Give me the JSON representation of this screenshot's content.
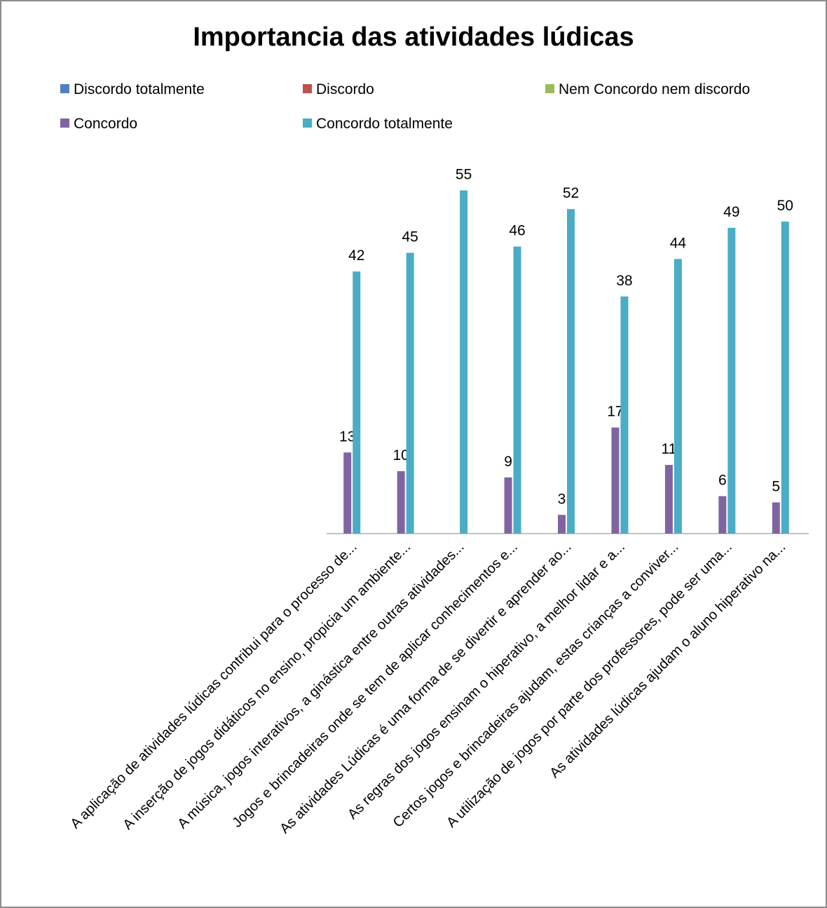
{
  "chart_data": {
    "type": "bar",
    "title": "Importancia das atividades lúdicas",
    "legend_placement": "top",
    "categories": [
      "A aplicação de atividades lúdicas contribui para o processo de...",
      "A inserção de jogos didáticos no ensino, propicia um ambiente...",
      "A música, jogos interativos, a ginástica entre outras atividades...",
      "Jogos e brincadeiras onde se tem de aplicar conhecimentos e...",
      "As atividades Lúdicas é uma forma de se divertir e aprender ao...",
      "As regras dos jogos ensinam o hiperativo, a melhor lidar e a...",
      "Certos jogos e brincadeiras ajudam, estas crianças a conviver...",
      "A utilização de jogos por parte dos professores,  pode ser uma...",
      "As atividades lúdicas ajudam o aluno hiperativo na..."
    ],
    "series": [
      {
        "name": "Discordo totalmente",
        "color": "#4f81bd",
        "values": [
          0,
          0,
          0,
          0,
          0,
          0,
          0,
          0,
          0
        ]
      },
      {
        "name": "Discordo",
        "color": "#c0504d",
        "values": [
          0,
          0,
          0,
          0,
          0,
          0,
          0,
          0,
          0
        ]
      },
      {
        "name": "Nem Concordo nem discordo",
        "color": "#9bbb59",
        "values": [
          0,
          0,
          0,
          0,
          0,
          0,
          0,
          0,
          0
        ]
      },
      {
        "name": "Concordo",
        "color": "#8064a2",
        "values": [
          13,
          10,
          0,
          9,
          3,
          17,
          11,
          6,
          5
        ]
      },
      {
        "name": "Concordo totalmente",
        "color": "#4bacc6",
        "values": [
          42,
          45,
          55,
          46,
          52,
          38,
          44,
          49,
          50
        ]
      }
    ],
    "data_labels": [
      [
        "",
        "",
        "",
        "",
        "",
        "",
        "",
        "",
        ""
      ],
      [
        "",
        "",
        "",
        "",
        "",
        "",
        "",
        "",
        ""
      ],
      [
        "",
        "",
        "",
        "",
        "",
        "",
        "",
        "",
        ""
      ],
      [
        "13",
        "10",
        "",
        "9",
        "3",
        "17",
        "11",
        "6",
        "5"
      ],
      [
        "42",
        "45",
        "55",
        "46",
        "52",
        "38",
        "44",
        "49",
        "50"
      ]
    ],
    "ylim": [
      0,
      55
    ],
    "grid": false
  }
}
